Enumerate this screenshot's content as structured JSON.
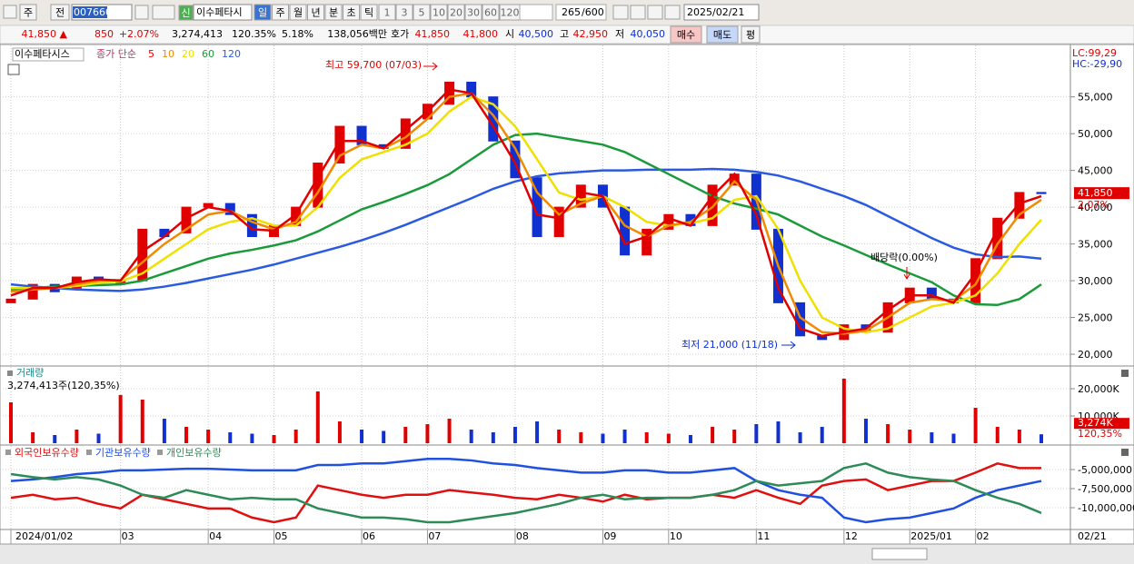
{
  "toolbar": {
    "period_type": "주",
    "prev": "전",
    "code": "007660",
    "name_badge": "신",
    "name": "이수페타시",
    "intervals": [
      "일",
      "주",
      "월",
      "년",
      "분",
      "초",
      "틱"
    ],
    "minutes": [
      "1",
      "3",
      "5",
      "10",
      "20",
      "30",
      "60",
      "120"
    ],
    "count": "265",
    "max_count": "/600",
    "date": "2025/02/21"
  },
  "info_bar": {
    "price": "41,850 ▲",
    "change": "850",
    "change_rate": "+2.07%",
    "volume": "3,274,413",
    "volume_rate": "120.35%",
    "turnover": "5.18%",
    "amount": "138,056백만",
    "quote_label": "호가",
    "ask": "41,850",
    "bid": "41,800",
    "open_label": "시",
    "open": "40,500",
    "high_label": "고",
    "high": "42,950",
    "low_label": "저",
    "low": "40,050",
    "buy": "매수",
    "sell": "매도",
    "avg": "평"
  },
  "chart_data": [
    {
      "type": "candlestick",
      "title": "이수페타시스",
      "ma_label": "종가 단순",
      "categories": [
        "2024/01/02",
        null,
        null,
        null,
        null,
        "03",
        null,
        null,
        null,
        "04",
        null,
        null,
        "05",
        null,
        null,
        null,
        "06",
        null,
        null,
        "07",
        null,
        null,
        null,
        "08",
        null,
        null,
        null,
        "09",
        null,
        null,
        "10",
        null,
        null,
        null,
        "11",
        null,
        null,
        null,
        "12",
        null,
        null,
        "2025/01",
        null,
        null,
        "02",
        null,
        null,
        null
      ],
      "end_label": "02/21",
      "open": [
        27000,
        27500,
        29500,
        29000,
        30500,
        29500,
        30000,
        37000,
        36500,
        40000,
        40500,
        39000,
        36000,
        37500,
        40000,
        46000,
        51000,
        48500,
        48000,
        52000,
        54000,
        57000,
        55000,
        49000,
        44000,
        36000,
        40000,
        43000,
        40000,
        33500,
        37000,
        39000,
        37500,
        43000,
        44500,
        37000,
        27000,
        22500,
        22000,
        24000,
        23000,
        27000,
        29000,
        27500,
        27000,
        33000,
        38500,
        42000
      ],
      "close": [
        27500,
        29500,
        28500,
        30500,
        30000,
        30000,
        37000,
        36000,
        40000,
        40500,
        39000,
        36000,
        37500,
        40000,
        46000,
        51000,
        48500,
        48000,
        52000,
        54000,
        57000,
        55000,
        49000,
        44000,
        36000,
        40000,
        43000,
        40000,
        33500,
        37000,
        39000,
        37500,
        43000,
        44500,
        37000,
        27000,
        22500,
        22000,
        24000,
        23000,
        27000,
        29000,
        27500,
        27000,
        33000,
        38500,
        42000,
        41850
      ],
      "up_color": "#e00000",
      "down_color": "#1030d0",
      "series": [
        {
          "name": "5",
          "color": "#e00000",
          "values": [
            28000,
            29000,
            29000,
            29800,
            30200,
            30000,
            34000,
            36000,
            38500,
            40000,
            39500,
            37000,
            36800,
            39000,
            44000,
            49000,
            49000,
            48000,
            50500,
            53000,
            56000,
            55500,
            51000,
            46000,
            39000,
            38500,
            42000,
            41500,
            35000,
            36000,
            38500,
            37500,
            41500,
            44500,
            39000,
            29000,
            23500,
            22500,
            23000,
            23500,
            26000,
            28000,
            28000,
            27000,
            31000,
            37000,
            40500,
            41500
          ]
        },
        {
          "name": "10",
          "color": "#f08a00",
          "values": [
            28500,
            28800,
            29000,
            29500,
            30000,
            30100,
            32500,
            35000,
            37000,
            39000,
            39500,
            38000,
            37000,
            38000,
            42000,
            47000,
            48500,
            48000,
            49500,
            52000,
            55000,
            55500,
            52500,
            48000,
            42000,
            39000,
            40500,
            41500,
            37500,
            36000,
            37500,
            38000,
            40000,
            43500,
            41000,
            32000,
            25000,
            23000,
            22800,
            23200,
            25000,
            27000,
            27500,
            27300,
            29500,
            35000,
            39000,
            41000
          ]
        },
        {
          "name": "20",
          "color": "#f0e000",
          "values": [
            29000,
            29000,
            29000,
            29300,
            29700,
            29900,
            31000,
            33000,
            35000,
            37000,
            38000,
            38500,
            37500,
            37500,
            40000,
            44000,
            46500,
            47500,
            48500,
            50000,
            53000,
            55000,
            54000,
            51000,
            46500,
            42000,
            41000,
            41500,
            40000,
            38000,
            37500,
            37800,
            38500,
            41000,
            41500,
            37000,
            30000,
            25000,
            23500,
            23000,
            23500,
            25000,
            26500,
            27000,
            28000,
            31000,
            35000,
            38300
          ]
        },
        {
          "name": "60",
          "color": "#1a9a3a",
          "values": [
            28800,
            29000,
            29200,
            29300,
            29400,
            29500,
            30000,
            31000,
            32000,
            33000,
            33700,
            34200,
            34800,
            35500,
            36700,
            38200,
            39700,
            40700,
            41800,
            43000,
            44500,
            46500,
            48500,
            49800,
            50000,
            49500,
            49000,
            48500,
            47500,
            46000,
            44500,
            43000,
            41500,
            40500,
            39800,
            39000,
            37500,
            36000,
            34800,
            33500,
            32200,
            31000,
            29800,
            28000,
            26800,
            26700,
            27500,
            29500
          ]
        },
        {
          "name": "120",
          "color": "#2a5ae0",
          "values": [
            29500,
            29200,
            29000,
            28800,
            28700,
            28600,
            28800,
            29200,
            29700,
            30300,
            30900,
            31500,
            32200,
            33000,
            33800,
            34600,
            35500,
            36500,
            37600,
            38800,
            40000,
            41200,
            42500,
            43500,
            44200,
            44600,
            44800,
            45000,
            45000,
            45100,
            45100,
            45100,
            45200,
            45100,
            44800,
            44300,
            43500,
            42500,
            41500,
            40300,
            38800,
            37300,
            35800,
            34500,
            33600,
            33200,
            33300,
            33000
          ]
        }
      ],
      "ylim": [
        18400,
        62000
      ],
      "yticks": [
        {
          "value": 20000,
          "label": "20,000"
        },
        {
          "value": 25000,
          "label": "25,000"
        },
        {
          "value": 30000,
          "label": "30,000"
        },
        {
          "value": 35000,
          "label": "35,000"
        },
        {
          "value": 40000,
          "label": "40,000"
        },
        {
          "value": 45000,
          "label": "45,000"
        },
        {
          "value": 50000,
          "label": "50,000"
        },
        {
          "value": 55000,
          "label": "55,000"
        }
      ],
      "last_label": "41,850",
      "last_change": "2.07%",
      "lc": "LC:99,29",
      "hc": "HC:-29,90",
      "annotations": [
        "최고 59,700 (07/03)",
        "최저 21,000 (11/18)",
        "배당락(0.00%)"
      ]
    },
    {
      "type": "bar",
      "title": "거래량",
      "subtitle": "3,274,413주(120,35%)",
      "values": [
        15000,
        4000,
        3000,
        5000,
        3500,
        17700,
        16000,
        9000,
        6000,
        5000,
        4000,
        3500,
        3000,
        5000,
        19000,
        8000,
        5000,
        4500,
        6000,
        7000,
        9000,
        5000,
        4000,
        6000,
        8000,
        5000,
        4000,
        3500,
        5000,
        4000,
        3500,
        3000,
        6000,
        5000,
        7000,
        8000,
        4000,
        6000,
        23700,
        9000,
        7000,
        5000,
        4000,
        3500,
        13000,
        6000,
        5000,
        3274
      ],
      "ylim": [
        0,
        28000
      ],
      "yticks": [
        {
          "value": 10000,
          "label": "10,000K"
        },
        {
          "value": 20000,
          "label": "20,000K"
        }
      ],
      "last_label": "3,274K",
      "last_rate": "120,35%"
    },
    {
      "type": "line",
      "series": [
        {
          "name": "외국인보유수량",
          "color": "#e01010",
          "values": [
            -8700000,
            -8300000,
            -8900000,
            -8700000,
            -9500000,
            -10100000,
            -8300000,
            -8900000,
            -9500000,
            -10100000,
            -10100000,
            -11300000,
            -11900000,
            -11300000,
            -7100000,
            -7700000,
            -8300000,
            -8700000,
            -8300000,
            -8300000,
            -7700000,
            -8000000,
            -8300000,
            -8700000,
            -8900000,
            -8300000,
            -8700000,
            -9200000,
            -8300000,
            -8900000,
            -8700000,
            -8700000,
            -8300000,
            -8700000,
            -7700000,
            -8700000,
            -9500000,
            -7100000,
            -6500000,
            -6300000,
            -7700000,
            -7100000,
            -6500000,
            -6500000,
            -5400000,
            -4200000,
            -4800000,
            -4800000
          ]
        },
        {
          "name": "기관보유수량",
          "color": "#2050e0",
          "values": [
            -6500000,
            -6300000,
            -6000000,
            -5600000,
            -5400000,
            -5100000,
            -5100000,
            -5000000,
            -4900000,
            -4900000,
            -5000000,
            -5100000,
            -5100000,
            -5100000,
            -4400000,
            -4400000,
            -4200000,
            -4200000,
            -3900000,
            -3600000,
            -3600000,
            -3800000,
            -4200000,
            -4400000,
            -4800000,
            -5100000,
            -5400000,
            -5400000,
            -5100000,
            -5100000,
            -5400000,
            -5400000,
            -5100000,
            -4800000,
            -6500000,
            -7700000,
            -8300000,
            -8700000,
            -11300000,
            -11900000,
            -11500000,
            -11300000,
            -10700000,
            -10100000,
            -8700000,
            -7700000,
            -7100000,
            -6500000
          ]
        },
        {
          "name": "개인보유수량",
          "color": "#2e8b57",
          "values": [
            -5600000,
            -6000000,
            -6300000,
            -6000000,
            -6300000,
            -7100000,
            -8300000,
            -8700000,
            -7700000,
            -8300000,
            -8900000,
            -8700000,
            -8900000,
            -8900000,
            -10100000,
            -10700000,
            -11300000,
            -11300000,
            -11500000,
            -11900000,
            -11900000,
            -11500000,
            -11100000,
            -10700000,
            -10100000,
            -9500000,
            -8700000,
            -8300000,
            -8900000,
            -8700000,
            -8700000,
            -8700000,
            -8300000,
            -7700000,
            -6500000,
            -7100000,
            -6800000,
            -6500000,
            -4800000,
            -4200000,
            -5400000,
            -6000000,
            -6300000,
            -6500000,
            -7700000,
            -8700000,
            -9500000,
            -10700000
          ]
        }
      ],
      "ylim": [
        -12860000,
        -2140000
      ],
      "yticks": [
        {
          "value": -5000000,
          "label": "-5,000,000"
        },
        {
          "value": -7500000,
          "label": "-7,500,000"
        },
        {
          "value": -10000000,
          "label": "-10,000,000"
        }
      ]
    }
  ]
}
